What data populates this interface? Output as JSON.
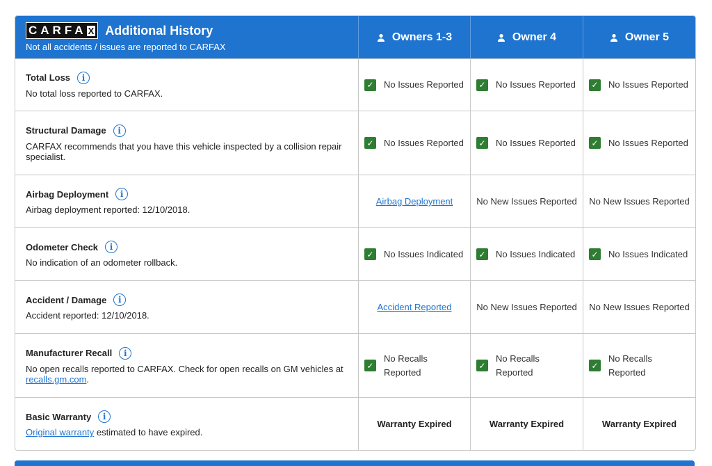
{
  "header": {
    "logo": "CARFAX",
    "title": "Additional History",
    "subtitle": "Not all accidents / issues are reported to CARFAX",
    "owners": [
      "Owners 1-3",
      "Owner 4",
      "Owner 5"
    ]
  },
  "colors": {
    "brand_blue": "#1f74d0",
    "check_green": "#2e7d32"
  },
  "rows": [
    {
      "title": "Total Loss",
      "desc": "No total loss reported to CARFAX.",
      "cells": [
        {
          "type": "check",
          "text": "No Issues Reported"
        },
        {
          "type": "check",
          "text": "No Issues Reported"
        },
        {
          "type": "check",
          "text": "No Issues Reported"
        }
      ]
    },
    {
      "title": "Structural Damage",
      "desc": "CARFAX recommends that you have this vehicle inspected by a collision repair specialist.",
      "cells": [
        {
          "type": "check",
          "text": "No Issues Reported"
        },
        {
          "type": "check",
          "text": "No Issues Reported"
        },
        {
          "type": "check",
          "text": "No Issues Reported"
        }
      ]
    },
    {
      "title": "Airbag Deployment",
      "desc": "Airbag deployment reported: 12/10/2018.",
      "cells": [
        {
          "type": "link",
          "text": "Airbag Deployment"
        },
        {
          "type": "text",
          "text": "No New Issues Reported"
        },
        {
          "type": "text",
          "text": "No New Issues Reported"
        }
      ]
    },
    {
      "title": "Odometer Check",
      "desc": "No indication of an odometer rollback.",
      "cells": [
        {
          "type": "check",
          "text": "No Issues Indicated"
        },
        {
          "type": "check",
          "text": "No Issues Indicated"
        },
        {
          "type": "check",
          "text": "No Issues Indicated"
        }
      ]
    },
    {
      "title": "Accident / Damage",
      "desc": "Accident reported: 12/10/2018.",
      "cells": [
        {
          "type": "link",
          "text": "Accident Reported"
        },
        {
          "type": "text",
          "text": "No New Issues Reported"
        },
        {
          "type": "text",
          "text": "No New Issues Reported"
        }
      ]
    },
    {
      "title": "Manufacturer Recall",
      "desc": "No open recalls reported to CARFAX. Check for open recalls on GM vehicles at ",
      "desc_link": "recalls.gm.com",
      "desc_after": ".",
      "cells": [
        {
          "type": "check",
          "text": "No Recalls Reported"
        },
        {
          "type": "check",
          "text": "No Recalls Reported"
        },
        {
          "type": "check",
          "text": "No Recalls Reported"
        }
      ]
    },
    {
      "title": "Basic Warranty",
      "desc_link_first": "Original warranty",
      "desc": " estimated to have expired.",
      "cells": [
        {
          "type": "bold",
          "text": "Warranty Expired"
        },
        {
          "type": "bold",
          "text": "Warranty Expired"
        },
        {
          "type": "bold",
          "text": "Warranty Expired"
        }
      ]
    }
  ]
}
